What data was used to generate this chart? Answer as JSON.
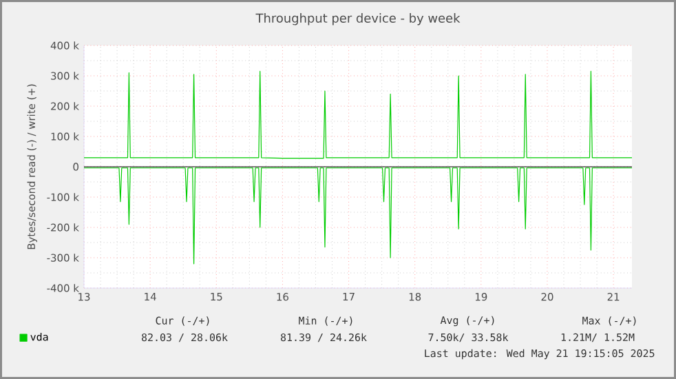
{
  "chart_data": {
    "type": "line",
    "title": "Throughput per device - by week",
    "ylabel": "Bytes/second read (-) / write (+)",
    "series": [
      {
        "name": "vda",
        "color": "#00cc00",
        "x": [
          13.0,
          13.5,
          13.66,
          13.68,
          13.7,
          14.0,
          14.64,
          14.66,
          14.68,
          15.0,
          15.64,
          15.66,
          15.68,
          16.0,
          16.62,
          16.64,
          16.66,
          17.0,
          17.61,
          17.63,
          17.65,
          18.0,
          18.64,
          18.66,
          18.68,
          19.0,
          19.65,
          19.67,
          19.69,
          20.0,
          20.64,
          20.66,
          20.68,
          21.0,
          21.28
        ],
        "values": [
          30000,
          30000,
          30000,
          310000,
          30000,
          30000,
          30000,
          305000,
          30000,
          30000,
          30000,
          315000,
          30000,
          28000,
          28000,
          250000,
          30000,
          30000,
          30000,
          240000,
          30000,
          30000,
          30000,
          300000,
          30000,
          30000,
          30000,
          305000,
          30000,
          30000,
          30000,
          315000,
          30000,
          30000,
          30000
        ]
      },
      {
        "color": "#00cc00",
        "x": [
          13.0,
          13.53,
          13.55,
          13.57,
          13.66,
          13.68,
          13.7,
          14.53,
          14.55,
          14.57,
          14.64,
          14.66,
          14.68,
          15.55,
          15.57,
          15.59,
          15.64,
          15.66,
          15.68,
          16.53,
          16.55,
          16.57,
          16.62,
          16.64,
          16.66,
          17.51,
          17.53,
          17.55,
          17.61,
          17.63,
          17.65,
          18.53,
          18.55,
          18.57,
          18.64,
          18.66,
          18.68,
          19.55,
          19.57,
          19.59,
          19.65,
          19.67,
          19.69,
          20.54,
          20.56,
          20.58,
          20.64,
          20.66,
          20.68,
          21.28
        ],
        "values": [
          -4000,
          -4000,
          -115000,
          -4000,
          -4000,
          -190000,
          -4000,
          -4000,
          -115000,
          -4000,
          -4000,
          -320000,
          -4000,
          -4000,
          -115000,
          -4000,
          -4000,
          -200000,
          -4000,
          -4000,
          -115000,
          -4000,
          -4000,
          -265000,
          -4000,
          -4000,
          -115000,
          -4000,
          -4000,
          -300000,
          -4000,
          -4000,
          -115000,
          -4000,
          -4000,
          -205000,
          -4000,
          -4000,
          -115000,
          -4000,
          -4000,
          -205000,
          -4000,
          -4000,
          -125000,
          -4000,
          -4000,
          -275000,
          -4000,
          -4000
        ]
      }
    ],
    "xlim": [
      13,
      21.28
    ],
    "xticks": [
      13,
      14,
      15,
      16,
      17,
      18,
      19,
      20,
      21
    ],
    "ylim": [
      -400000,
      400000
    ],
    "yticks": [
      {
        "value": -400000,
        "label": "-400 k"
      },
      {
        "value": -300000,
        "label": "-300 k"
      },
      {
        "value": -200000,
        "label": "-200 k"
      },
      {
        "value": -100000,
        "label": "-100 k"
      },
      {
        "value": 0,
        "label": "0"
      },
      {
        "value": 100000,
        "label": "100 k"
      },
      {
        "value": 200000,
        "label": "200 k"
      },
      {
        "value": 300000,
        "label": "300 k"
      },
      {
        "value": 400000,
        "label": "400 k"
      }
    ],
    "ref_lines": [
      {
        "axis": "y",
        "value": 0,
        "color": "#000000"
      }
    ],
    "grid": true,
    "legend": "bottom left",
    "annotations": [
      "Cur (-/+)",
      "Min (-/+)",
      "Avg (-/+)",
      "Max (-/+)",
      "82.03 / 28.06k",
      "81.39 / 24.26k",
      "7.50k/ 33.58k",
      "1.21M/  1.52M",
      "Last update: Wed May 21 19:15:05 2025"
    ]
  }
}
